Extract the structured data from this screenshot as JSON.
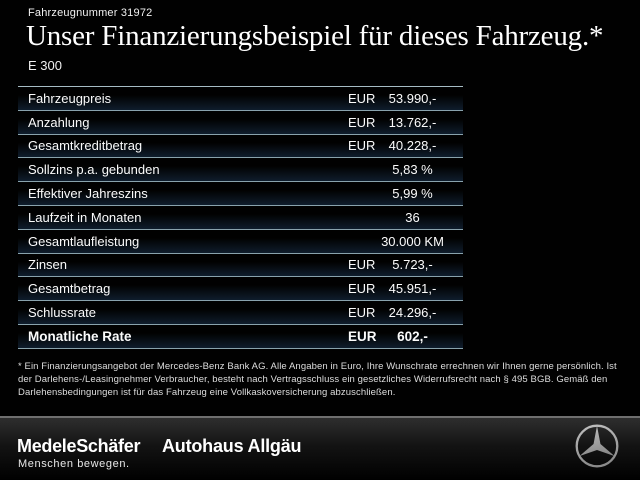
{
  "header": {
    "vehicle_number": "Fahrzeugnummer 31972",
    "title": "Unser Finanzierungsbeispiel für dieses Fahrzeug.*",
    "model": "E 300"
  },
  "table": {
    "rows": [
      {
        "label": "Fahrzeugpreis",
        "currency": "EUR",
        "value": "53.990,-"
      },
      {
        "label": "Anzahlung",
        "currency": "EUR",
        "value": "13.762,-"
      },
      {
        "label": "Gesamtkreditbetrag",
        "currency": "EUR",
        "value": "40.228,-"
      },
      {
        "label": "Sollzins p.a. gebunden",
        "currency": "",
        "value": "5,83 %"
      },
      {
        "label": "Effektiver Jahreszins",
        "currency": "",
        "value": "5,99 %"
      },
      {
        "label": "Laufzeit in Monaten",
        "currency": "",
        "value": "36"
      },
      {
        "label": "Gesamtlaufleistung",
        "currency": "",
        "value": "30.000 KM"
      },
      {
        "label": "Zinsen",
        "currency": "EUR",
        "value": "5.723,-"
      },
      {
        "label": "Gesamtbetrag",
        "currency": "EUR",
        "value": "45.951,-"
      },
      {
        "label": "Schlussrate",
        "currency": "EUR",
        "value": "24.296,-"
      },
      {
        "label": "Monatliche Rate",
        "currency": "EUR",
        "value": "602,-",
        "emphasis": true
      }
    ]
  },
  "footnote": "* Ein Finanzierungsangebot der Mercedes-Benz Bank AG. Alle Angaben in Euro, Ihre Wunschrate errechnen wir Ihnen gerne persönlich. Ist der Darlehens-/Leasingnehmer Verbraucher, besteht nach Vertragsschluss ein gesetzliches Widerrufsrecht nach § 495 BGB. Gemäß den Darlehensbedingungen ist für das Fahrzeug eine Vollkaskoversicherung abzuschließen.",
  "footer": {
    "dealer_logo": "MedeleSchäfer",
    "dealer_tagline": "Menschen bewegen.",
    "dealer_second_logo": "Autohaus Allgäu",
    "brand_icon": "mercedes-star-icon"
  },
  "colors": {
    "background": "#010101",
    "text": "#ffffff",
    "table_line": "#89a2ac",
    "table_glow": "#1a3450",
    "footer_divider": "#6f6f6f",
    "star_silver": "#d6d6d6"
  }
}
